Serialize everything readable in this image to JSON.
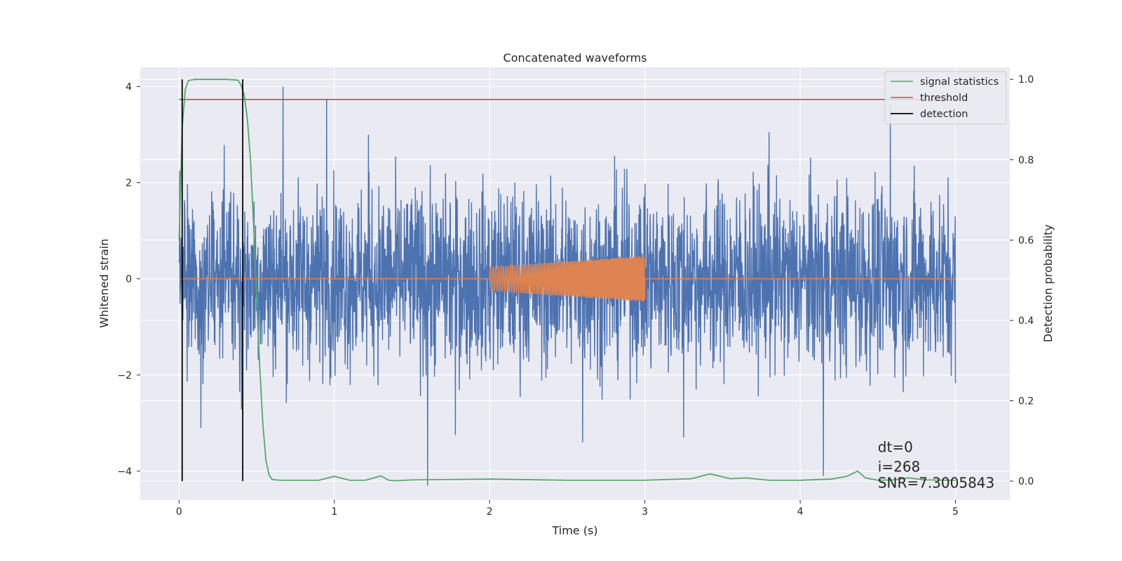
{
  "chart_data": {
    "type": "line",
    "title": "Concatenated waveforms",
    "xlabel": "Time (s)",
    "ylabel": "Whitened strain",
    "y2label": "Detection probability",
    "xlim": [
      -0.25,
      5.35
    ],
    "ylim": [
      -4.6,
      4.4
    ],
    "y2lim": [
      -0.047,
      1.03
    ],
    "xticks": [
      0,
      1,
      2,
      3,
      4,
      5
    ],
    "yticks": [
      -4,
      -2,
      0,
      2,
      4
    ],
    "y2ticks": [
      0.0,
      0.2,
      0.4,
      0.6,
      0.8,
      1.0
    ],
    "xtick_labels": [
      "0",
      "1",
      "2",
      "3",
      "4",
      "5"
    ],
    "ytick_labels": [
      "−4",
      "−2",
      "0",
      "2",
      "4"
    ],
    "y2tick_labels": [
      "0.0",
      "0.2",
      "0.4",
      "0.6",
      "0.8",
      "1.0"
    ],
    "grid": true,
    "legend_position": "top-right",
    "colors": {
      "background": "#eaeaf2",
      "noise": "#4c72b0",
      "injection": "#dd8452",
      "signal_statistics": "#55a868",
      "threshold": "#c44e52",
      "detection": "#000000"
    },
    "series": [
      {
        "name": "signal statistics",
        "axis": "right",
        "x": [
          0,
          0.02,
          0.04,
          0.06,
          0.1,
          0.2,
          0.3,
          0.38,
          0.4,
          0.42,
          0.44,
          0.46,
          0.48,
          0.5,
          0.52,
          0.54,
          0.56,
          0.58,
          0.6,
          0.65,
          0.7,
          0.9,
          1.0,
          1.1,
          1.2,
          1.3,
          1.35,
          1.4,
          1.5,
          2.0,
          2.5,
          3.0,
          3.3,
          3.42,
          3.55,
          3.65,
          3.8,
          4.0,
          4.2,
          4.3,
          4.37,
          4.42,
          4.5,
          4.6,
          4.7,
          4.8,
          5.0
        ],
        "y": [
          0.6,
          0.88,
          0.975,
          0.997,
          1.0,
          1.0,
          1.0,
          0.998,
          0.985,
          0.96,
          0.9,
          0.8,
          0.64,
          0.45,
          0.28,
          0.14,
          0.05,
          0.015,
          0.004,
          0.002,
          0.002,
          0.002,
          0.012,
          0.002,
          0.002,
          0.013,
          0.002,
          0.001,
          0.003,
          0.005,
          0.002,
          0.002,
          0.006,
          0.018,
          0.006,
          0.008,
          0.002,
          0.002,
          0.005,
          0.012,
          0.025,
          0.008,
          0.002,
          0.003,
          0.008,
          0.003,
          0.002
        ]
      },
      {
        "name": "threshold",
        "axis": "right",
        "x": [
          0,
          5
        ],
        "y": [
          0.95,
          0.95
        ]
      },
      {
        "name": "detection",
        "axis": "right",
        "x": [
          0.02,
          0.41
        ],
        "y": [
          1.0,
          1.0
        ]
      }
    ],
    "noise_series": {
      "axis": "left",
      "x_range": [
        0,
        5
      ],
      "typical_amplitude": 1.0,
      "spikes": [
        {
          "x": 0.67,
          "y": 4.0
        },
        {
          "x": 0.95,
          "y": 3.75
        },
        {
          "x": 4.58,
          "y": 3.6
        },
        {
          "x": 1.6,
          "y": -4.3
        },
        {
          "x": 4.15,
          "y": -4.1
        },
        {
          "x": 2.6,
          "y": -3.4
        },
        {
          "x": 3.25,
          "y": -3.3
        },
        {
          "x": 1.78,
          "y": -3.25
        },
        {
          "x": 0.14,
          "y": -3.1
        },
        {
          "x": 3.8,
          "y": 3.05
        },
        {
          "x": 1.22,
          "y": 3.0
        }
      ]
    },
    "injection_series": {
      "axis": "left",
      "x_range": [
        2.0,
        3.0
      ],
      "amplitude_start": 0.25,
      "amplitude_end": 0.48
    },
    "annotations": {
      "dt": "dt=0",
      "i": "i=268",
      "snr": "SNR=7.3005843"
    },
    "annotation_anchor": {
      "x": 4.5,
      "y": -3.6
    }
  }
}
